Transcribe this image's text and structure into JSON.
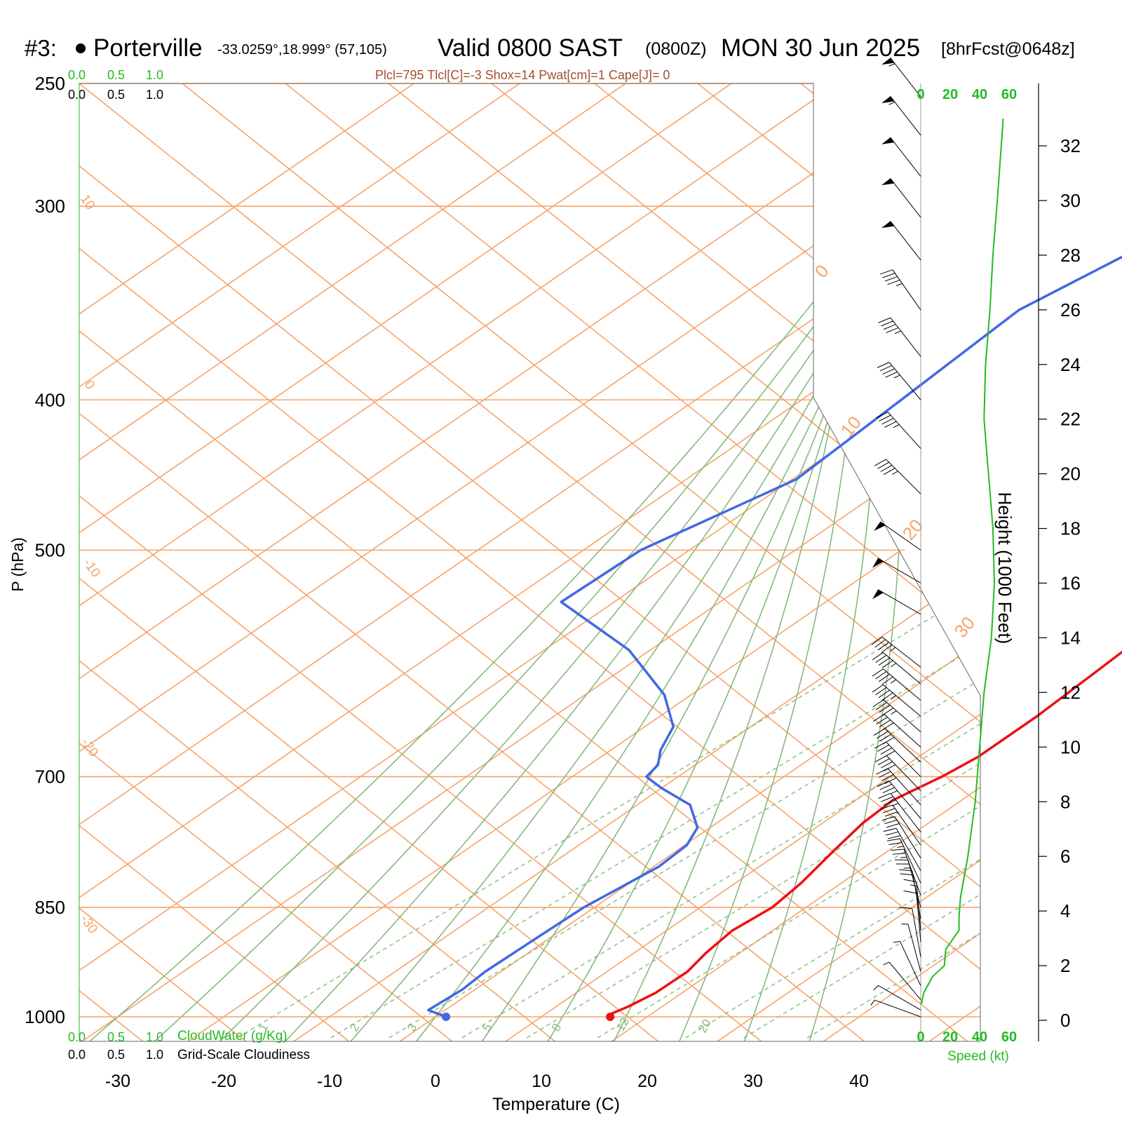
{
  "header": {
    "id": "#3:",
    "station": "Porterville",
    "coords": "-33.0259°,18.999° (57,105)",
    "valid_label": "Valid 0800 SAST",
    "zulu": "(0800Z)",
    "date": "MON 30 Jun 2025",
    "forecast": "[8hrFcst@0648z]",
    "indices": "Plcl=795 Tlcl[C]=-3 Shox=14 Pwat[cm]=1 Cape[J]= 0"
  },
  "colors": {
    "isotherm": "#f5a46a",
    "adiabat": "#86b97d",
    "temperature": "#ee1111",
    "dewpoint": "#4169e1",
    "speed": "#22bb22",
    "cloud": "#22bb22",
    "isotherm_label": "#f5a46a"
  },
  "chart_data": {
    "type": "line",
    "title": "Porterville Skew-T",
    "xlabel": "Temperature (C)",
    "ylabel": "P (hPa)",
    "xlim": [
      -30,
      40
    ],
    "pressure_levels": [
      250,
      300,
      400,
      500,
      700,
      850,
      1000
    ],
    "pressure_tick_labels": [
      "250",
      "300",
      "400",
      "500",
      "700",
      "850",
      "1000"
    ],
    "temperature_ticks": [
      -30,
      -20,
      -10,
      0,
      10,
      20,
      30,
      40
    ],
    "temperature_tick_labels": [
      "-30",
      "-20",
      "-10",
      "0",
      "10",
      "20",
      "30",
      "40"
    ],
    "isotherm_labels": [
      "10",
      "0",
      "-10",
      "-20",
      "-30",
      "0",
      "10",
      "20",
      "30"
    ],
    "mixing_ratio_labels": [
      "1",
      "2",
      "3",
      "5",
      "8",
      "12",
      "20"
    ],
    "series": [
      {
        "name": "Temperature",
        "values": [
          {
            "p": 1000,
            "t": 16.5
          },
          {
            "p": 995,
            "t": 16.2
          },
          {
            "p": 985,
            "t": 16.8
          },
          {
            "p": 965,
            "t": 17.5
          },
          {
            "p": 935,
            "t": 17.6
          },
          {
            "p": 910,
            "t": 16.8
          },
          {
            "p": 880,
            "t": 16.2
          },
          {
            "p": 850,
            "t": 16.8
          },
          {
            "p": 820,
            "t": 16.2
          },
          {
            "p": 780,
            "t": 14.8
          },
          {
            "p": 750,
            "t": 13.8
          },
          {
            "p": 725,
            "t": 13.5
          },
          {
            "p": 700,
            "t": 14.9
          },
          {
            "p": 680,
            "t": 15.6
          },
          {
            "p": 640,
            "t": 15.6
          },
          {
            "p": 600,
            "t": 15.1
          },
          {
            "p": 540,
            "t": 14.2
          },
          {
            "p": 500,
            "t": 11.0
          },
          {
            "p": 450,
            "t": 7.2
          },
          {
            "p": 400,
            "t": 2.0
          },
          {
            "p": 350,
            "t": -4.5
          },
          {
            "p": 300,
            "t": -12.0
          },
          {
            "p": 262,
            "t": -18.0
          }
        ]
      },
      {
        "name": "Dewpoint",
        "values": [
          {
            "p": 1000,
            "t": 1.0
          },
          {
            "p": 990,
            "t": -1.6
          },
          {
            "p": 960,
            "t": -1.2
          },
          {
            "p": 935,
            "t": -1.5
          },
          {
            "p": 880,
            "t": -1.2
          },
          {
            "p": 850,
            "t": -1.0
          },
          {
            "p": 800,
            "t": 0.5
          },
          {
            "p": 775,
            "t": 0.2
          },
          {
            "p": 755,
            "t": -1.2
          },
          {
            "p": 730,
            "t": -5.0
          },
          {
            "p": 712,
            "t": -10.0
          },
          {
            "p": 700,
            "t": -13.0
          },
          {
            "p": 688,
            "t": -13.5
          },
          {
            "p": 673,
            "t": -15.3
          },
          {
            "p": 650,
            "t": -17.3
          },
          {
            "p": 620,
            "t": -22.5
          },
          {
            "p": 580,
            "t": -32.0
          },
          {
            "p": 540,
            "t": -45.0
          },
          {
            "p": 500,
            "t": -44.6
          },
          {
            "p": 450,
            "t": -39.6
          },
          {
            "p": 400,
            "t": -40.6
          },
          {
            "p": 350,
            "t": -41.8
          },
          {
            "p": 320,
            "t": -39.0
          },
          {
            "p": 300,
            "t": -40.8
          },
          {
            "p": 280,
            "t": -43.2
          },
          {
            "p": 262,
            "t": -44.8
          }
        ]
      }
    ],
    "speed_axis": {
      "label": "Speed (kt)",
      "ticks": [
        "0",
        "20",
        "40",
        "60"
      ],
      "profile": [
        {
          "h": 0.6,
          "kt": 0.5
        },
        {
          "h": 1.0,
          "kt": 2
        },
        {
          "h": 1.6,
          "kt": 8
        },
        {
          "h": 2.0,
          "kt": 16
        },
        {
          "h": 2.6,
          "kt": 17
        },
        {
          "h": 3.3,
          "kt": 26
        },
        {
          "h": 3.8,
          "kt": 26
        },
        {
          "h": 4.5,
          "kt": 27
        },
        {
          "h": 6.0,
          "kt": 32
        },
        {
          "h": 8.0,
          "kt": 37
        },
        {
          "h": 10.0,
          "kt": 40
        },
        {
          "h": 12.0,
          "kt": 43
        },
        {
          "h": 14.0,
          "kt": 48
        },
        {
          "h": 16.0,
          "kt": 50
        },
        {
          "h": 18.0,
          "kt": 49
        },
        {
          "h": 20.0,
          "kt": 46
        },
        {
          "h": 22.0,
          "kt": 43
        },
        {
          "h": 24.0,
          "kt": 44
        },
        {
          "h": 26.0,
          "kt": 47
        },
        {
          "h": 28.0,
          "kt": 49
        },
        {
          "h": 30.0,
          "kt": 52
        },
        {
          "h": 33.0,
          "kt": 56
        }
      ]
    },
    "height_axis": {
      "label": "Height (1000 Feet)",
      "ticks": [
        "0",
        "2",
        "4",
        "6",
        "8",
        "10",
        "12",
        "14",
        "16",
        "18",
        "20",
        "22",
        "24",
        "26",
        "28",
        "30",
        "32"
      ]
    },
    "cloud_axes": {
      "cloudwater_label": "CloudWater (g/Kg)",
      "cloudiness_label": "Grid-Scale Cloudiness",
      "ticks": [
        "0.0",
        "0.5",
        "1.0"
      ]
    },
    "wind_barbs": [
      {
        "p": 1000,
        "dir": 290,
        "kt": 3
      },
      {
        "p": 990,
        "dir": 300,
        "kt": 4
      },
      {
        "p": 975,
        "dir": 320,
        "kt": 4
      },
      {
        "p": 955,
        "dir": 335,
        "kt": 5
      },
      {
        "p": 935,
        "dir": 345,
        "kt": 6
      },
      {
        "p": 915,
        "dir": 350,
        "kt": 8
      },
      {
        "p": 895,
        "dir": 355,
        "kt": 12
      },
      {
        "p": 880,
        "dir": 355,
        "kt": 16
      },
      {
        "p": 865,
        "dir": 350,
        "kt": 20
      },
      {
        "p": 850,
        "dir": 345,
        "kt": 24
      },
      {
        "p": 835,
        "dir": 340,
        "kt": 26
      },
      {
        "p": 820,
        "dir": 335,
        "kt": 27
      },
      {
        "p": 805,
        "dir": 330,
        "kt": 28
      },
      {
        "p": 790,
        "dir": 328,
        "kt": 30
      },
      {
        "p": 775,
        "dir": 325,
        "kt": 32
      },
      {
        "p": 760,
        "dir": 322,
        "kt": 34
      },
      {
        "p": 745,
        "dir": 320,
        "kt": 36
      },
      {
        "p": 730,
        "dir": 318,
        "kt": 38
      },
      {
        "p": 715,
        "dir": 316,
        "kt": 39
      },
      {
        "p": 700,
        "dir": 315,
        "kt": 40
      },
      {
        "p": 685,
        "dir": 313,
        "kt": 41
      },
      {
        "p": 670,
        "dir": 312,
        "kt": 42
      },
      {
        "p": 655,
        "dir": 311,
        "kt": 43
      },
      {
        "p": 640,
        "dir": 310,
        "kt": 44
      },
      {
        "p": 625,
        "dir": 310,
        "kt": 45
      },
      {
        "p": 610,
        "dir": 310,
        "kt": 46
      },
      {
        "p": 595,
        "dir": 308,
        "kt": 47
      },
      {
        "p": 550,
        "dir": 300,
        "kt": 50
      },
      {
        "p": 525,
        "dir": 300,
        "kt": 50
      },
      {
        "p": 500,
        "dir": 305,
        "kt": 50
      },
      {
        "p": 460,
        "dir": 315,
        "kt": 46
      },
      {
        "p": 430,
        "dir": 318,
        "kt": 44
      },
      {
        "p": 400,
        "dir": 320,
        "kt": 44
      },
      {
        "p": 375,
        "dir": 322,
        "kt": 45
      },
      {
        "p": 350,
        "dir": 325,
        "kt": 47
      },
      {
        "p": 325,
        "dir": 322,
        "kt": 50
      },
      {
        "p": 305,
        "dir": 322,
        "kt": 51
      },
      {
        "p": 287,
        "dir": 322,
        "kt": 52
      },
      {
        "p": 270,
        "dir": 322,
        "kt": 53
      },
      {
        "p": 255,
        "dir": 322,
        "kt": 55
      }
    ]
  }
}
